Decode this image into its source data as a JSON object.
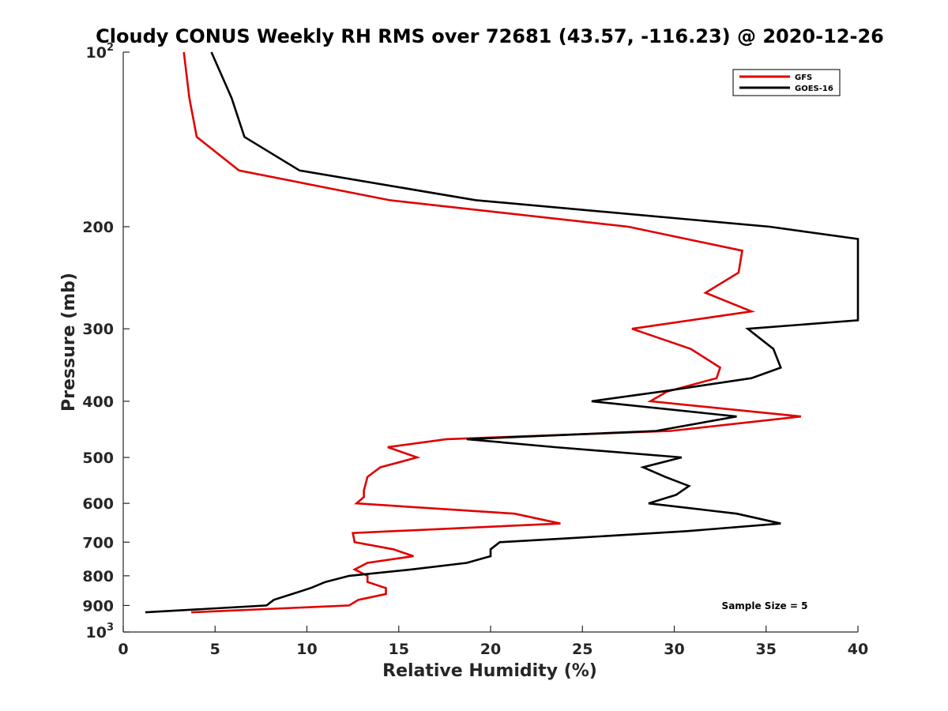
{
  "chart_data": {
    "type": "line",
    "title": "Cloudy CONUS Weekly RH RMS over 72681 (43.57, -116.23) @ 2020-12-26",
    "xlabel": "Relative Humidity (%)",
    "ylabel": "Pressure (mb)",
    "xlim": [
      0,
      40
    ],
    "ylim": [
      100,
      1000
    ],
    "y_scale": "log",
    "y_reversed": false,
    "grid": false,
    "legend_position": "top-right",
    "x_ticks": [
      "0",
      "5",
      "10",
      "15",
      "20",
      "25",
      "30",
      "35",
      "40"
    ],
    "x_tick_values": [
      0,
      5,
      10,
      15,
      20,
      25,
      30,
      35,
      40
    ],
    "y_ticks": [
      {
        "value": 100,
        "base": "10",
        "exp": "2"
      },
      {
        "value": 200,
        "label": "200"
      },
      {
        "value": 300,
        "label": "300"
      },
      {
        "value": 400,
        "label": "400"
      },
      {
        "value": 500,
        "label": "500"
      },
      {
        "value": 600,
        "label": "600"
      },
      {
        "value": 700,
        "label": "700"
      },
      {
        "value": 800,
        "label": "800"
      },
      {
        "value": 900,
        "label": "900"
      },
      {
        "value": 1000,
        "base": "10",
        "exp": "3"
      }
    ],
    "annotation": "Sample Size = 5",
    "series": [
      {
        "name": "GFS",
        "color": "#e00000",
        "points": [
          [
            3.3,
            100
          ],
          [
            3.6,
            120
          ],
          [
            4.0,
            140
          ],
          [
            6.3,
            160
          ],
          [
            14.5,
            180
          ],
          [
            27.5,
            200
          ],
          [
            33.7,
            220
          ],
          [
            33.5,
            240
          ],
          [
            31.7,
            260
          ],
          [
            34.2,
            280
          ],
          [
            27.7,
            300
          ],
          [
            30.9,
            325
          ],
          [
            32.5,
            350
          ],
          [
            32.3,
            365
          ],
          [
            29.6,
            385
          ],
          [
            28.7,
            400
          ],
          [
            36.9,
            425
          ],
          [
            29.8,
            450
          ],
          [
            17.6,
            465
          ],
          [
            14.4,
            480
          ],
          [
            16.0,
            500
          ],
          [
            14.0,
            520
          ],
          [
            13.3,
            540
          ],
          [
            13.1,
            570
          ],
          [
            13.1,
            585
          ],
          [
            12.7,
            600
          ],
          [
            21.3,
            625
          ],
          [
            23.8,
            650
          ],
          [
            12.5,
            675
          ],
          [
            12.6,
            700
          ],
          [
            14.7,
            720
          ],
          [
            15.8,
            740
          ],
          [
            13.3,
            760
          ],
          [
            12.6,
            780
          ],
          [
            13.3,
            800
          ],
          [
            13.3,
            820
          ],
          [
            14.3,
            840
          ],
          [
            14.3,
            860
          ],
          [
            12.8,
            880
          ],
          [
            12.3,
            900
          ],
          [
            3.7,
            925
          ]
        ]
      },
      {
        "name": "GOES-16",
        "color": "#000000",
        "points": [
          [
            4.8,
            100
          ],
          [
            5.9,
            120
          ],
          [
            6.6,
            140
          ],
          [
            9.6,
            160
          ],
          [
            19.2,
            180
          ],
          [
            35.2,
            200
          ],
          [
            40.0,
            210
          ],
          [
            40.0,
            290
          ],
          [
            34.0,
            300
          ],
          [
            35.4,
            325
          ],
          [
            35.8,
            350
          ],
          [
            34.2,
            365
          ],
          [
            29.3,
            385
          ],
          [
            25.5,
            400
          ],
          [
            33.4,
            425
          ],
          [
            29.0,
            450
          ],
          [
            18.7,
            465
          ],
          [
            23.5,
            480
          ],
          [
            30.4,
            500
          ],
          [
            28.3,
            520
          ],
          [
            29.5,
            540
          ],
          [
            30.8,
            560
          ],
          [
            30.1,
            580
          ],
          [
            28.6,
            600
          ],
          [
            33.4,
            625
          ],
          [
            35.8,
            650
          ],
          [
            30.7,
            670
          ],
          [
            24.0,
            690
          ],
          [
            20.5,
            700
          ],
          [
            20.0,
            720
          ],
          [
            20.0,
            740
          ],
          [
            18.7,
            760
          ],
          [
            15.7,
            780
          ],
          [
            12.3,
            800
          ],
          [
            11.0,
            820
          ],
          [
            10.2,
            840
          ],
          [
            9.2,
            860
          ],
          [
            8.2,
            880
          ],
          [
            7.8,
            900
          ],
          [
            1.2,
            925
          ]
        ]
      }
    ]
  }
}
